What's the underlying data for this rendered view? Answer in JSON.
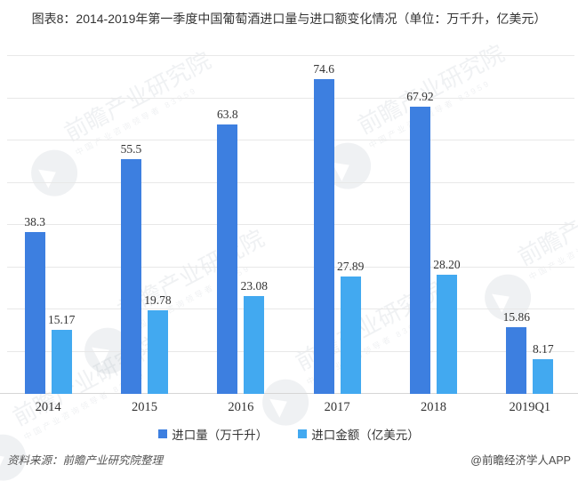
{
  "chart_data": {
    "type": "bar",
    "title": "图表8：2014-2019年第一季度中国葡萄酒进口量与进口额变化情况（单位：万千升，亿美元）",
    "categories": [
      "2014",
      "2015",
      "2016",
      "2017",
      "2018",
      "2019Q1"
    ],
    "series": [
      {
        "name": "进口量（万千升）",
        "color": "#3D7FE0",
        "values": [
          38.3,
          55.5,
          63.8,
          74.6,
          67.92,
          15.86
        ],
        "labels": [
          "38.3",
          "55.5",
          "63.8",
          "74.6",
          "67.92",
          "15.86"
        ]
      },
      {
        "name": "进口金额（亿美元）",
        "color": "#42A9F0",
        "values": [
          15.17,
          19.78,
          23.08,
          27.89,
          28.2,
          8.17
        ],
        "labels": [
          "15.17",
          "19.78",
          "23.08",
          "27.89",
          "28.20",
          "8.17"
        ]
      }
    ],
    "xlabel": "",
    "ylabel": "",
    "ylim": [
      0,
      80
    ],
    "grid_interval": 10,
    "grid": true,
    "legend_position": "bottom"
  },
  "legend": {
    "items": [
      {
        "label": "进口量（万千升）",
        "color": "#3D7FE0"
      },
      {
        "label": "进口金额（亿美元）",
        "color": "#42A9F0"
      }
    ]
  },
  "footer": {
    "source": "资料来源：前瞻产业研究院整理",
    "credit": "@前瞻经济学人APP"
  },
  "watermark": {
    "text": "前瞻产业研究院",
    "subtext": "中国产业咨询领导者 83959"
  }
}
